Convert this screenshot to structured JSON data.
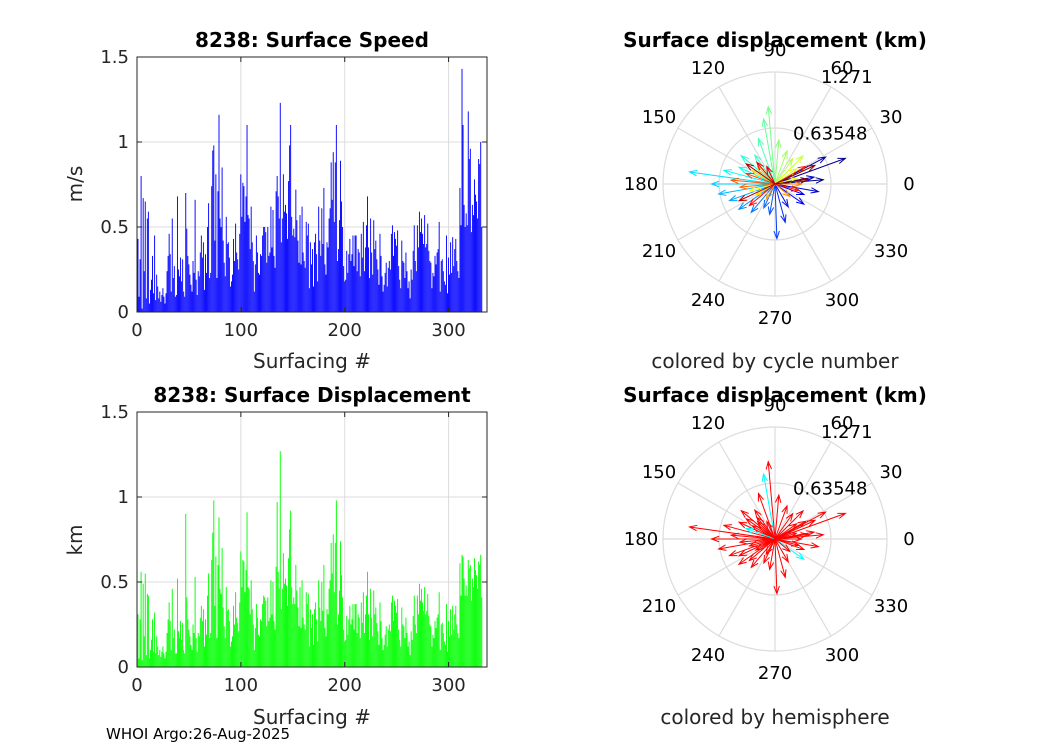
{
  "footer": "WHOI Argo:26-Aug-2025",
  "colors": {
    "speed_bar": "#0000ff",
    "displacement_bar": "#00ff00",
    "hemisphere_arrow": "#ff0000",
    "grid": "#dcdcdc",
    "axis": "#262626"
  },
  "chart_data": [
    {
      "type": "bar",
      "title": "8238: Surface Speed",
      "xlabel": "Surfacing #",
      "ylabel": "m/s",
      "xlim": [
        0,
        337
      ],
      "ylim": [
        0,
        1.5
      ],
      "xticks": [
        0,
        100,
        200,
        300
      ],
      "yticks": [
        0,
        0.5,
        1,
        1.5
      ],
      "x_tick_labels": [
        "0",
        "100",
        "200",
        "300"
      ],
      "y_tick_labels": [
        "0",
        "0.5",
        "1",
        "1.5"
      ],
      "grid": true,
      "x_start": 1,
      "values": [
        0.43,
        0.09,
        0.31,
        0.8,
        0.02,
        0.67,
        0.24,
        0.65,
        0.08,
        0.55,
        0.59,
        0.05,
        0.13,
        0.19,
        0.33,
        0.11,
        0.45,
        0.07,
        0.22,
        0.15,
        0.08,
        0.12,
        0.06,
        0.1,
        0.14,
        0.09,
        0.05,
        0.11,
        0.24,
        0.33,
        0.46,
        0.34,
        0.12,
        0.55,
        0.2,
        0.27,
        0.09,
        0.1,
        0.68,
        0.25,
        0.21,
        0.32,
        0.18,
        0.31,
        0.12,
        0.09,
        0.7,
        0.49,
        0.33,
        0.28,
        0.22,
        0.16,
        0.12,
        0.3,
        0.23,
        0.66,
        0.19,
        0.1,
        0.24,
        0.21,
        0.35,
        0.45,
        0.32,
        0.41,
        0.13,
        0.34,
        0.23,
        0.5,
        0.64,
        0.2,
        0.23,
        0.74,
        0.95,
        0.98,
        0.42,
        0.81,
        0.2,
        0.71,
        1.16,
        0.55,
        0.5,
        0.85,
        0.42,
        0.29,
        0.21,
        0.56,
        0.4,
        0.41,
        0.32,
        0.15,
        0.18,
        0.22,
        0.43,
        0.3,
        0.52,
        0.35,
        0.31,
        0.25,
        0.46,
        0.81,
        0.56,
        0.76,
        0.74,
        0.53,
        0.68,
        1.1,
        0.57,
        0.55,
        0.37,
        0.62,
        0.41,
        0.3,
        0.12,
        0.28,
        0.45,
        0.35,
        0.23,
        0.22,
        0.34,
        0.33,
        0.45,
        0.5,
        0.5,
        0.47,
        0.29,
        0.5,
        0.33,
        0.35,
        0.62,
        0.38,
        0.6,
        0.33,
        0.26,
        0.71,
        0.8,
        0.68,
        0.55,
        1.23,
        0.41,
        0.55,
        0.81,
        0.59,
        0.63,
        0.58,
        0.43,
        0.77,
        0.98,
        1.1,
        0.56,
        0.45,
        0.49,
        0.44,
        0.72,
        0.54,
        0.42,
        0.29,
        0.57,
        0.28,
        0.62,
        0.35,
        0.3,
        0.26,
        0.53,
        0.45,
        0.52,
        0.14,
        0.41,
        0.28,
        0.37,
        0.15,
        0.41,
        0.46,
        0.34,
        0.18,
        0.62,
        0.42,
        0.33,
        0.61,
        0.4,
        0.73,
        0.28,
        0.22,
        0.41,
        0.38,
        0.55,
        0.61,
        0.88,
        0.66,
        0.94,
        0.53,
        0.88,
        1.1,
        0.3,
        0.37,
        0.54,
        0.89,
        0.65,
        0.5,
        0.27,
        0.18,
        0.19,
        0.36,
        0.23,
        0.34,
        0.43,
        0.3,
        0.34,
        0.45,
        0.27,
        0.45,
        0.45,
        0.24,
        0.37,
        0.35,
        0.21,
        0.46,
        0.32,
        0.53,
        0.24,
        0.38,
        0.51,
        0.68,
        0.38,
        0.2,
        0.55,
        0.35,
        0.22,
        0.54,
        0.37,
        0.42,
        0.31,
        0.25,
        0.16,
        0.46,
        0.33,
        0.21,
        0.12,
        0.16,
        0.23,
        0.29,
        0.15,
        0.26,
        0.3,
        0.25,
        0.46,
        0.51,
        0.33,
        0.47,
        0.43,
        0.39,
        0.48,
        0.27,
        0.19,
        0.14,
        0.42,
        0.3,
        0.29,
        0.2,
        0.35,
        0.24,
        0.14,
        0.18,
        0.08,
        0.25,
        0.19,
        0.36,
        0.51,
        0.3,
        0.24,
        0.51,
        0.38,
        0.59,
        0.47,
        0.55,
        0.46,
        0.4,
        0.57,
        0.38,
        0.4,
        0.52,
        0.36,
        0.3,
        0.29,
        0.14,
        0.23,
        0.21,
        0.33,
        0.28,
        0.35,
        0.37,
        0.53,
        0.12,
        0.3,
        0.31,
        0.24,
        0.18,
        0.16,
        0.45,
        0.11,
        0.32,
        0.22,
        0.41,
        0.23,
        0.44,
        0.27,
        0.37,
        0.43,
        0.3,
        0.24,
        0.2,
        0.73,
        0.51,
        1.43,
        1.1,
        0.63,
        0.5,
        0.58,
        0.51,
        1.18,
        0.9,
        0.96,
        0.47,
        0.63,
        0.57,
        0.78,
        0.69,
        0.65,
        0.55,
        0.9,
        0.87,
        1.0,
        0.5
      ]
    },
    {
      "type": "bar",
      "title": "8238: Surface Displacement",
      "xlabel": "Surfacing #",
      "ylabel": "km",
      "xlim": [
        0,
        337
      ],
      "ylim": [
        0,
        1.5
      ],
      "xticks": [
        0,
        100,
        200,
        300
      ],
      "yticks": [
        0,
        0.5,
        1,
        1.5
      ],
      "x_tick_labels": [
        "0",
        "100",
        "200",
        "300"
      ],
      "y_tick_labels": [
        "0",
        "0.5",
        "1",
        "1.5"
      ],
      "grid": true,
      "x_start": 1,
      "values": [
        0.31,
        0.05,
        0.28,
        0.56,
        0.04,
        0.49,
        0.18,
        0.55,
        0.07,
        0.43,
        0.42,
        0.05,
        0.1,
        0.16,
        0.28,
        0.09,
        0.32,
        0.08,
        0.18,
        0.12,
        0.07,
        0.1,
        0.06,
        0.09,
        0.12,
        0.08,
        0.05,
        0.09,
        0.2,
        0.28,
        0.38,
        0.27,
        0.1,
        0.46,
        0.17,
        0.22,
        0.08,
        0.08,
        0.52,
        0.21,
        0.17,
        0.27,
        0.16,
        0.26,
        0.1,
        0.08,
        0.9,
        0.41,
        0.28,
        0.22,
        0.18,
        0.13,
        0.1,
        0.25,
        0.2,
        0.53,
        0.17,
        0.09,
        0.2,
        0.18,
        0.29,
        0.36,
        0.27,
        0.34,
        0.12,
        0.28,
        0.19,
        0.42,
        0.55,
        0.17,
        0.2,
        0.63,
        0.79,
        0.98,
        0.36,
        0.65,
        0.17,
        0.6,
        0.88,
        0.46,
        0.43,
        0.7,
        0.35,
        0.24,
        0.17,
        0.47,
        0.33,
        0.34,
        0.27,
        0.12,
        0.15,
        0.18,
        0.36,
        0.25,
        0.44,
        0.29,
        0.26,
        0.21,
        0.38,
        0.68,
        0.47,
        0.63,
        0.62,
        0.44,
        0.57,
        0.91,
        0.47,
        0.46,
        0.31,
        0.51,
        0.34,
        0.25,
        0.1,
        0.23,
        0.37,
        0.29,
        0.19,
        0.18,
        0.28,
        0.27,
        0.37,
        0.42,
        0.41,
        0.39,
        0.24,
        0.41,
        0.27,
        0.29,
        0.51,
        0.31,
        0.5,
        0.27,
        0.22,
        0.59,
        0.97,
        0.56,
        0.46,
        1.27,
        0.34,
        0.46,
        0.67,
        0.49,
        0.52,
        0.48,
        0.36,
        0.64,
        0.81,
        0.92,
        0.47,
        0.37,
        0.41,
        0.37,
        0.6,
        0.45,
        0.35,
        0.24,
        0.47,
        0.23,
        0.51,
        0.29,
        0.25,
        0.22,
        0.44,
        0.37,
        0.43,
        0.12,
        0.34,
        0.23,
        0.31,
        0.13,
        0.34,
        0.38,
        0.28,
        0.15,
        0.51,
        0.35,
        0.27,
        0.5,
        0.33,
        0.6,
        0.23,
        0.18,
        0.34,
        0.31,
        0.46,
        0.51,
        0.73,
        0.55,
        0.78,
        0.44,
        0.73,
        0.98,
        0.25,
        0.31,
        0.45,
        0.74,
        0.54,
        0.41,
        0.22,
        0.15,
        0.16,
        0.3,
        0.19,
        0.28,
        0.36,
        0.25,
        0.28,
        0.37,
        0.22,
        0.37,
        0.37,
        0.2,
        0.31,
        0.29,
        0.17,
        0.38,
        0.26,
        0.44,
        0.2,
        0.31,
        0.42,
        0.56,
        0.31,
        0.16,
        0.46,
        0.29,
        0.18,
        0.45,
        0.31,
        0.35,
        0.26,
        0.21,
        0.13,
        0.38,
        0.27,
        0.17,
        0.1,
        0.13,
        0.19,
        0.24,
        0.12,
        0.22,
        0.25,
        0.21,
        0.38,
        0.42,
        0.27,
        0.39,
        0.36,
        0.32,
        0.4,
        0.22,
        0.16,
        0.12,
        0.35,
        0.25,
        0.24,
        0.17,
        0.29,
        0.2,
        0.12,
        0.15,
        0.07,
        0.21,
        0.16,
        0.3,
        0.42,
        0.25,
        0.2,
        0.42,
        0.31,
        0.49,
        0.39,
        0.46,
        0.38,
        0.33,
        0.47,
        0.31,
        0.33,
        0.43,
        0.3,
        0.25,
        0.24,
        0.12,
        0.19,
        0.17,
        0.27,
        0.23,
        0.29,
        0.31,
        0.44,
        0.1,
        0.25,
        0.26,
        0.2,
        0.15,
        0.13,
        0.37,
        0.09,
        0.27,
        0.18,
        0.34,
        0.19,
        0.36,
        0.22,
        0.31,
        0.36,
        0.25,
        0.2,
        0.17,
        0.61,
        0.42,
        0.66,
        0.65,
        0.52,
        0.42,
        0.48,
        0.42,
        0.63,
        0.58,
        0.6,
        0.39,
        0.52,
        0.47,
        0.64,
        0.57,
        0.54,
        0.46,
        0.62,
        0.6,
        0.66,
        0.41
      ]
    },
    {
      "type": "polar-vector",
      "title": "Surface displacement (km)",
      "caption": "colored by cycle number",
      "rmax": 1.271,
      "radial_labels": [
        "0.63548",
        "1.271"
      ],
      "angle_labels": [
        "0",
        "30",
        "60",
        "90",
        "120",
        "150",
        "180",
        "210",
        "240",
        "270",
        "300",
        "330"
      ],
      "color_scheme": "jet by cycle number",
      "vectors": [
        {
          "angle": 5,
          "r": 0.55
        },
        {
          "angle": 20,
          "r": 0.85
        },
        {
          "angle": 28,
          "r": 0.65
        },
        {
          "angle": 10,
          "r": 0.45
        },
        {
          "angle": 350,
          "r": 0.5
        },
        {
          "angle": 340,
          "r": 0.35
        },
        {
          "angle": 325,
          "r": 0.4
        },
        {
          "angle": 300,
          "r": 0.3
        },
        {
          "angle": 285,
          "r": 0.45
        },
        {
          "angle": 272,
          "r": 0.62
        },
        {
          "angle": 260,
          "r": 0.35
        },
        {
          "angle": 245,
          "r": 0.3
        },
        {
          "angle": 230,
          "r": 0.42
        },
        {
          "angle": 215,
          "r": 0.5
        },
        {
          "angle": 200,
          "r": 0.55
        },
        {
          "angle": 190,
          "r": 0.65
        },
        {
          "angle": 180,
          "r": 0.72
        },
        {
          "angle": 172,
          "r": 0.98
        },
        {
          "angle": 165,
          "r": 0.6
        },
        {
          "angle": 155,
          "r": 0.45
        },
        {
          "angle": 140,
          "r": 0.5
        },
        {
          "angle": 125,
          "r": 0.4
        },
        {
          "angle": 110,
          "r": 0.55
        },
        {
          "angle": 100,
          "r": 0.75
        },
        {
          "angle": 95,
          "r": 0.88
        },
        {
          "angle": 85,
          "r": 0.5
        },
        {
          "angle": 70,
          "r": 0.4
        },
        {
          "angle": 55,
          "r": 0.35
        },
        {
          "angle": 45,
          "r": 0.45
        },
        {
          "angle": 35,
          "r": 0.3
        },
        {
          "angle": 15,
          "r": 0.25
        },
        {
          "angle": 195,
          "r": 0.3
        },
        {
          "angle": 210,
          "r": 0.25
        },
        {
          "angle": 150,
          "r": 0.3
        },
        {
          "angle": 135,
          "r": 0.28
        },
        {
          "angle": 240,
          "r": 0.2
        },
        {
          "angle": 320,
          "r": 0.22
        },
        {
          "angle": 0,
          "r": 0.3
        },
        {
          "angle": 185,
          "r": 0.4
        },
        {
          "angle": 175,
          "r": 0.5
        },
        {
          "angle": 160,
          "r": 0.35
        },
        {
          "angle": 30,
          "r": 0.4
        },
        {
          "angle": 345,
          "r": 0.28
        },
        {
          "angle": 220,
          "r": 0.38
        },
        {
          "angle": 130,
          "r": 0.32
        },
        {
          "angle": 115,
          "r": 0.22
        },
        {
          "angle": 205,
          "r": 0.45
        },
        {
          "angle": 145,
          "r": 0.4
        },
        {
          "angle": 25,
          "r": 0.5
        },
        {
          "angle": 8,
          "r": 0.38
        }
      ]
    },
    {
      "type": "polar-vector",
      "title": "Surface displacement (km)",
      "caption": "colored by hemisphere",
      "rmax": 1.271,
      "radial_labels": [
        "0.63548",
        "1.271"
      ],
      "angle_labels": [
        "0",
        "30",
        "60",
        "90",
        "120",
        "150",
        "180",
        "210",
        "240",
        "270",
        "300",
        "330"
      ],
      "color_scheme": "red (one hemisphere), cyan (few)",
      "vectors": [
        {
          "angle": 5,
          "r": 0.55
        },
        {
          "angle": 20,
          "r": 0.85
        },
        {
          "angle": 28,
          "r": 0.65
        },
        {
          "angle": 10,
          "r": 0.45
        },
        {
          "angle": 350,
          "r": 0.5
        },
        {
          "angle": 340,
          "r": 0.35
        },
        {
          "angle": 325,
          "r": 0.4
        },
        {
          "angle": 300,
          "r": 0.3
        },
        {
          "angle": 285,
          "r": 0.45
        },
        {
          "angle": 272,
          "r": 0.62
        },
        {
          "angle": 260,
          "r": 0.35
        },
        {
          "angle": 245,
          "r": 0.3
        },
        {
          "angle": 230,
          "r": 0.42
        },
        {
          "angle": 215,
          "r": 0.5
        },
        {
          "angle": 200,
          "r": 0.55
        },
        {
          "angle": 190,
          "r": 0.65
        },
        {
          "angle": 180,
          "r": 0.72
        },
        {
          "angle": 172,
          "r": 0.98
        },
        {
          "angle": 165,
          "r": 0.6
        },
        {
          "angle": 155,
          "r": 0.45
        },
        {
          "angle": 140,
          "r": 0.5
        },
        {
          "angle": 125,
          "r": 0.4
        },
        {
          "angle": 110,
          "r": 0.55
        },
        {
          "angle": 100,
          "r": 0.75
        },
        {
          "angle": 95,
          "r": 0.88
        },
        {
          "angle": 85,
          "r": 0.5
        },
        {
          "angle": 70,
          "r": 0.4
        },
        {
          "angle": 55,
          "r": 0.35
        },
        {
          "angle": 45,
          "r": 0.45
        },
        {
          "angle": 35,
          "r": 0.3
        },
        {
          "angle": 15,
          "r": 0.25
        },
        {
          "angle": 195,
          "r": 0.3
        },
        {
          "angle": 210,
          "r": 0.25
        },
        {
          "angle": 150,
          "r": 0.3
        },
        {
          "angle": 135,
          "r": 0.28
        },
        {
          "angle": 240,
          "r": 0.2
        },
        {
          "angle": 320,
          "r": 0.22
        },
        {
          "angle": 0,
          "r": 0.3
        },
        {
          "angle": 185,
          "r": 0.4
        },
        {
          "angle": 175,
          "r": 0.5
        },
        {
          "angle": 160,
          "r": 0.35
        },
        {
          "angle": 30,
          "r": 0.4
        },
        {
          "angle": 345,
          "r": 0.28
        },
        {
          "angle": 220,
          "r": 0.38
        },
        {
          "angle": 130,
          "r": 0.32
        },
        {
          "angle": 115,
          "r": 0.22
        },
        {
          "angle": 205,
          "r": 0.45
        },
        {
          "angle": 145,
          "r": 0.4
        },
        {
          "angle": 25,
          "r": 0.5
        },
        {
          "angle": 8,
          "r": 0.38
        }
      ]
    }
  ]
}
